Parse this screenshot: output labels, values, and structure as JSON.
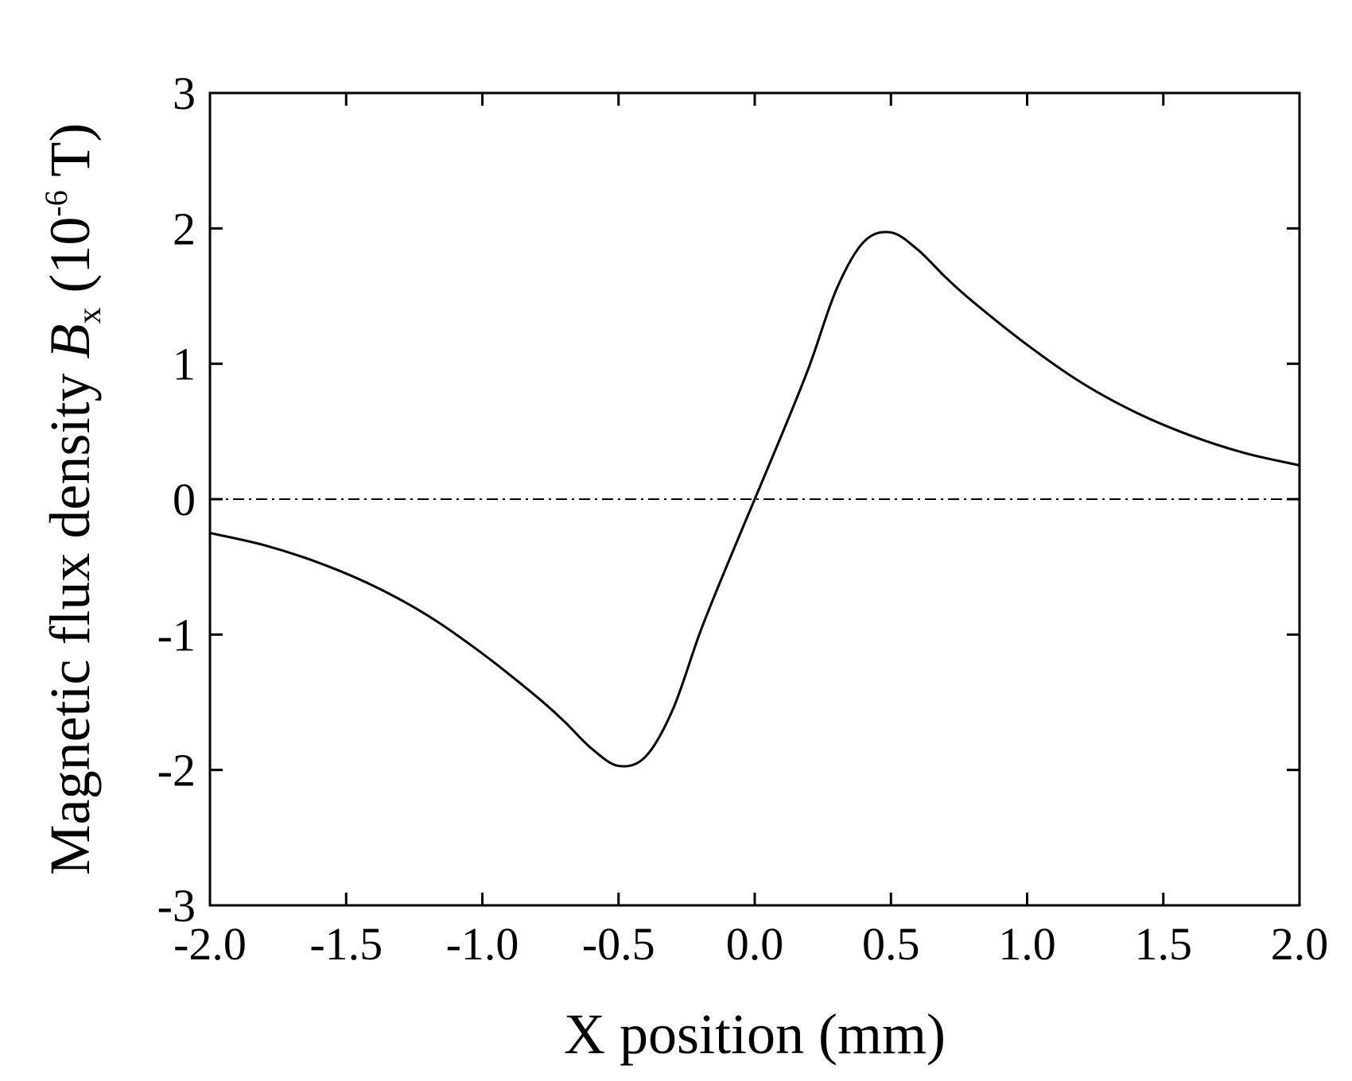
{
  "chart_data": {
    "type": "line",
    "title": "",
    "xlabel": "X position (mm)",
    "ylabel": {
      "prefix": "Magnetic flux density ",
      "symbol": "B",
      "subscript": "x",
      "unit_open": " (10",
      "superscript": "-6",
      "unit_close": " T)"
    },
    "xlim": [
      -2.0,
      2.0
    ],
    "ylim": [
      -3,
      3
    ],
    "xticks": [
      "-2.0",
      "-1.5",
      "-1.0",
      "-0.5",
      "0.0",
      "0.5",
      "1.0",
      "1.5",
      "2.0"
    ],
    "yticks": [
      "-3",
      "-2",
      "-1",
      "0",
      "1",
      "2",
      "3"
    ],
    "grid": false,
    "legend": "none",
    "reference_line": {
      "y": 0,
      "style": "dash-dot"
    },
    "series": [
      {
        "color": "#000000",
        "x": [
          -2.0,
          -1.8,
          -1.6,
          -1.4,
          -1.2,
          -1.0,
          -0.8,
          -0.7,
          -0.6,
          -0.5,
          -0.4,
          -0.3,
          -0.2,
          -0.1,
          0.0,
          0.1,
          0.2,
          0.3,
          0.4,
          0.5,
          0.6,
          0.7,
          0.8,
          1.0,
          1.2,
          1.4,
          1.6,
          1.8,
          2.0
        ],
        "y": [
          -0.25,
          -0.34,
          -0.47,
          -0.64,
          -0.86,
          -1.14,
          -1.46,
          -1.64,
          -1.84,
          -1.97,
          -1.9,
          -1.55,
          -0.98,
          -0.48,
          0.0,
          0.48,
          0.98,
          1.55,
          1.9,
          1.97,
          1.84,
          1.64,
          1.46,
          1.14,
          0.86,
          0.64,
          0.47,
          0.34,
          0.25
        ]
      }
    ]
  }
}
